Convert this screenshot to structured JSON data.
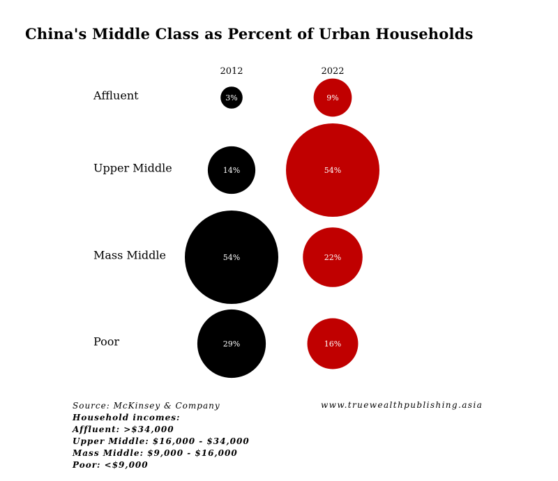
{
  "title": "China's Middle Class as Percent of Urban Households",
  "colors": {
    "series_2012": "#000000",
    "series_2022": "#c00000",
    "label_on_bubble": "#ffffff"
  },
  "chart_data": {
    "type": "bubble-matrix",
    "title": "China's Middle Class as Percent of Urban Households",
    "columns": [
      "2012",
      "2022"
    ],
    "categories": [
      "Affluent",
      "Upper Middle",
      "Mass Middle",
      "Poor"
    ],
    "series": [
      {
        "name": "2012",
        "values": [
          3,
          14,
          54,
          29
        ],
        "labels": [
          "3%",
          "14%",
          "54%",
          "29%"
        ]
      },
      {
        "name": "2022",
        "values": [
          9,
          54,
          22,
          16
        ],
        "labels": [
          "9%",
          "54%",
          "22%",
          "16%"
        ]
      }
    ]
  },
  "footer": {
    "source": "Source: McKinsey & Company",
    "incomes_heading": "Household incomes:",
    "income_lines": [
      "Affluent: >$34,000",
      "Upper Middle: $16,000 - $34,000",
      "Mass Middle: $9,000 - $16,000",
      "Poor: <$9,000"
    ],
    "website": "www.truewealthpublishing.asia"
  }
}
